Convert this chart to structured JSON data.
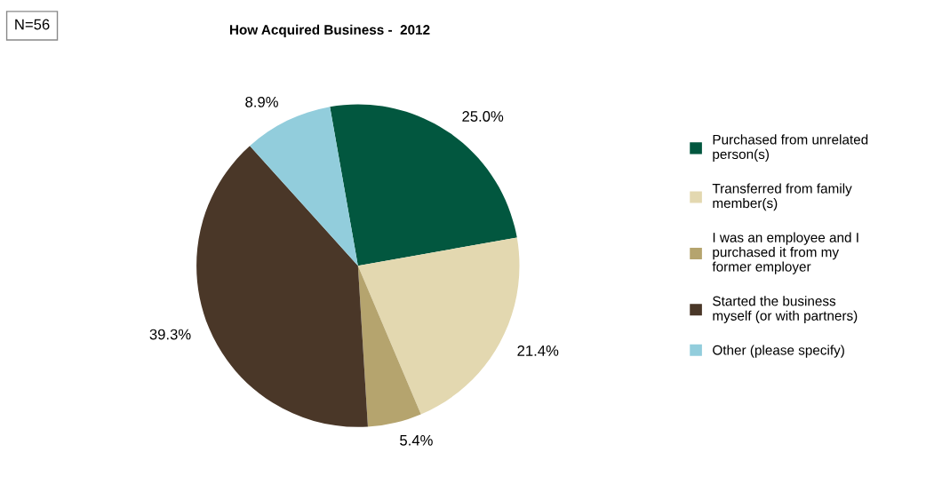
{
  "chart_data": {
    "type": "pie",
    "title": "How Acquired Business -  2012",
    "categories": [
      "Purchased from unrelated\nperson(s)",
      "Transferred from family\nmember(s)",
      "I was an employee and I\npurchased it from my\nformer employer",
      "Started the business\nmyself (or with partners)",
      "Other (please specify)"
    ],
    "values": [
      25.0,
      21.4,
      5.4,
      39.3,
      8.9
    ],
    "value_labels": [
      "25.0%",
      "21.4%",
      "5.4%",
      "39.3%",
      "8.9%"
    ],
    "colors": [
      "#02573f",
      "#e3d8b0",
      "#b5a46e",
      "#4a3728",
      "#92cddc"
    ],
    "annotations": [
      "N=56"
    ],
    "legend": "right"
  }
}
